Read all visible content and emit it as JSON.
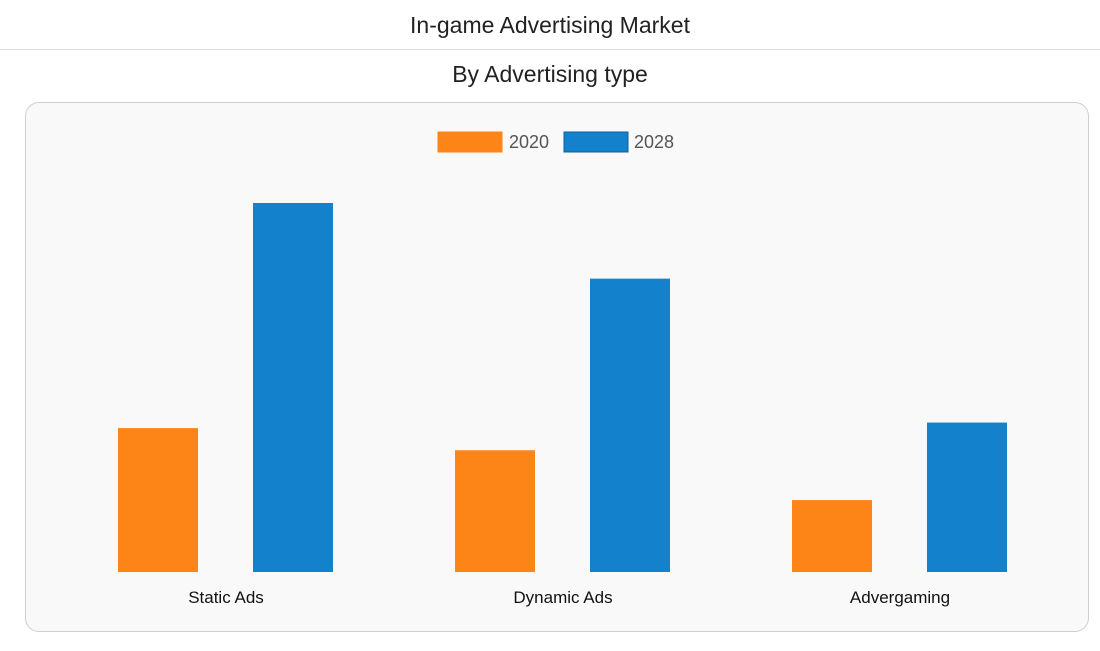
{
  "header": {
    "title": "In-game Advertising Market"
  },
  "subheader": {
    "title": "By Advertising type"
  },
  "chart_data": {
    "type": "bar",
    "categories": [
      "Static Ads",
      "Dynamic Ads",
      "Advergaming"
    ],
    "series": [
      {
        "name": "2020",
        "values": [
          39,
          33,
          19.5
        ],
        "color": "#fd8417"
      },
      {
        "name": "2028",
        "values": [
          100,
          79.5,
          40.5
        ],
        "color": "#1381cc"
      }
    ],
    "ylim": [
      0,
      100
    ],
    "grid": false,
    "y_axis_visible": false,
    "legend": "top-center",
    "title": "",
    "xlabel": "",
    "ylabel": ""
  }
}
